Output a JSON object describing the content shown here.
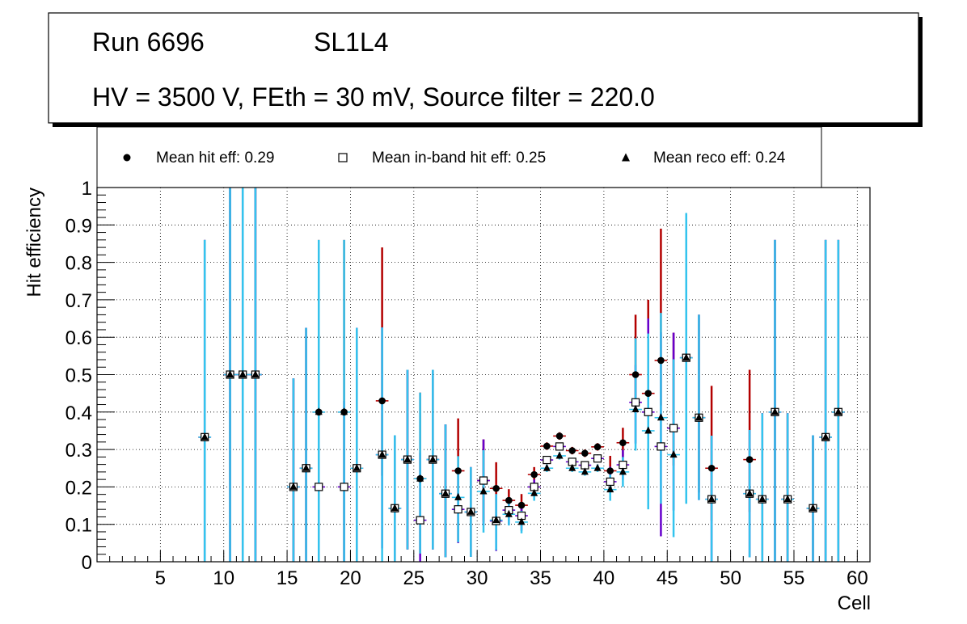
{
  "header": {
    "run": "Run 6696",
    "layer": "SL1L4",
    "settings": "HV = 3500 V, FEth = 30 mV, Source filter = 220.0"
  },
  "legend": {
    "hit": "Mean hit  eff: 0.29",
    "inband": "Mean in-band hit eff: 0.25",
    "reco": "Mean reco eff: 0.24"
  },
  "colors": {
    "hit_err": "#b30000",
    "inband_err": "#6600cc",
    "reco_err": "#33c4ee",
    "marker": "#000000",
    "grid": "#000000"
  },
  "chart_data": {
    "type": "scatter",
    "title": "",
    "xlabel": "Cell",
    "ylabel": "Hit efficiency",
    "xlim": [
      0,
      61
    ],
    "ylim": [
      0,
      1
    ],
    "x_ticks": [
      5,
      10,
      15,
      20,
      25,
      30,
      35,
      40,
      45,
      50,
      55,
      60
    ],
    "x_tick_labels": [
      "5",
      "10",
      "15",
      "20",
      "25",
      "30",
      "35",
      "40",
      "45",
      "50",
      "55",
      "60"
    ],
    "y_ticks": [
      0,
      0.1,
      0.2,
      0.3,
      0.4,
      0.5,
      0.6,
      0.7,
      0.8,
      0.9,
      1
    ],
    "y_tick_labels": [
      "0",
      "0.1",
      "0.2",
      "0.3",
      "0.4",
      "0.5",
      "0.6",
      "0.7",
      "0.8",
      "0.9",
      "1"
    ],
    "grid": true,
    "x": [
      8.5,
      10.5,
      11.5,
      12.5,
      15.5,
      16.5,
      17.5,
      19.5,
      20.5,
      22.5,
      23.5,
      24.5,
      25.5,
      26.5,
      27.5,
      28.5,
      29.5,
      30.5,
      31.5,
      32.5,
      33.5,
      34.5,
      35.5,
      36.5,
      37.5,
      38.5,
      39.5,
      40.5,
      41.5,
      42.5,
      43.5,
      44.5,
      45.5,
      46.5,
      47.5,
      48.5,
      51.5,
      52.5,
      53.5,
      54.5,
      56.5,
      57.5,
      58.5
    ],
    "series": [
      {
        "name": "Mean hit  eff: 0.29",
        "marker": "circle",
        "values": [
          0.333,
          0.5,
          0.5,
          0.5,
          0.2,
          0.25,
          0.4,
          0.4,
          0.25,
          0.43,
          0.143,
          0.273,
          0.222,
          0.273,
          0.182,
          0.243,
          0.133,
          0.217,
          0.196,
          0.164,
          0.151,
          0.233,
          0.309,
          0.336,
          0.297,
          0.29,
          0.307,
          0.243,
          0.318,
          0.5,
          0.45,
          0.538,
          0.357,
          0.545,
          0.385,
          0.25,
          0.273,
          0.167,
          0.4,
          0.167,
          0.143,
          0.333,
          0.4
        ],
        "err_low": [
          0.333,
          0.5,
          0.5,
          0.5,
          0.2,
          0.25,
          0.4,
          0.4,
          0.25,
          0.2,
          0.143,
          0.24,
          0.2,
          0.24,
          0.17,
          0.19,
          0.12,
          0.11,
          0.1,
          0.04,
          0.04,
          0.02,
          0.01,
          0.01,
          0.01,
          0.01,
          0.01,
          0.04,
          0.04,
          0.06,
          0.05,
          0.12,
          0.1,
          0.18,
          0.2,
          0.14,
          0.14,
          0.17,
          0.4,
          0.167,
          0.143,
          0.333,
          0.4
        ],
        "err_high": [
          0.527,
          0.5,
          0.5,
          0.5,
          0.29,
          0.375,
          0.46,
          0.46,
          0.375,
          0.41,
          0.195,
          0.24,
          0.23,
          0.24,
          0.185,
          0.14,
          0.12,
          0.11,
          0.07,
          0.03,
          0.03,
          0.02,
          0.01,
          0.01,
          0.01,
          0.01,
          0.01,
          0.04,
          0.04,
          0.16,
          0.25,
          0.352,
          0.255,
          0.387,
          0.275,
          0.22,
          0.24,
          0.23,
          0.46,
          0.23,
          0.195,
          0.527,
          0.46
        ]
      },
      {
        "name": "Mean in-band hit eff: 0.25",
        "marker": "open-square",
        "values": [
          0.333,
          0.5,
          0.5,
          0.5,
          0.2,
          0.25,
          0.2,
          0.2,
          0.25,
          0.286,
          0.143,
          0.273,
          0.111,
          0.273,
          0.182,
          0.14,
          0.133,
          0.217,
          0.109,
          0.138,
          0.123,
          0.2,
          0.272,
          0.308,
          0.267,
          0.258,
          0.276,
          0.214,
          0.259,
          0.426,
          0.4,
          0.308,
          0.357,
          0.545,
          0.385,
          0.167,
          0.182,
          0.167,
          0.4,
          0.167,
          0.143,
          0.333,
          0.4
        ],
        "err_low": [
          0.333,
          0.5,
          0.5,
          0.5,
          0.2,
          0.25,
          0.2,
          0.2,
          0.25,
          0.25,
          0.143,
          0.24,
          0.111,
          0.24,
          0.17,
          0.09,
          0.12,
          0.12,
          0.08,
          0.04,
          0.04,
          0.02,
          0.01,
          0.01,
          0.01,
          0.01,
          0.01,
          0.03,
          0.04,
          0.11,
          0.16,
          0.24,
          0.22,
          0.25,
          0.22,
          0.167,
          0.17,
          0.167,
          0.4,
          0.167,
          0.143,
          0.333,
          0.4
        ],
        "err_high": [
          0.527,
          0.5,
          0.5,
          0.5,
          0.29,
          0.375,
          0.23,
          0.23,
          0.375,
          0.34,
          0.195,
          0.24,
          0.18,
          0.24,
          0.185,
          0.1,
          0.12,
          0.11,
          0.07,
          0.03,
          0.03,
          0.02,
          0.01,
          0.01,
          0.01,
          0.01,
          0.01,
          0.04,
          0.04,
          0.1,
          0.25,
          0.305,
          0.255,
          0.387,
          0.275,
          0.17,
          0.17,
          0.23,
          0.46,
          0.23,
          0.195,
          0.527,
          0.46
        ]
      },
      {
        "name": "Mean reco eff: 0.24",
        "marker": "triangle",
        "values": [
          0.333,
          0.5,
          0.5,
          0.5,
          0.2,
          0.25,
          0.4,
          0.4,
          0.25,
          0.286,
          0.143,
          0.273,
          0.222,
          0.273,
          0.182,
          0.172,
          0.133,
          0.188,
          0.111,
          0.127,
          0.106,
          0.183,
          0.25,
          0.283,
          0.25,
          0.24,
          0.25,
          0.193,
          0.24,
          0.407,
          0.35,
          0.385,
          0.286,
          0.545,
          0.385,
          0.167,
          0.182,
          0.167,
          0.4,
          0.167,
          0.143,
          0.333,
          0.4
        ],
        "err_low": [
          0.333,
          0.5,
          0.5,
          0.5,
          0.2,
          0.25,
          0.4,
          0.4,
          0.25,
          0.286,
          0.143,
          0.24,
          0.2,
          0.24,
          0.17,
          0.12,
          0.12,
          0.11,
          0.08,
          0.03,
          0.03,
          0.02,
          0.01,
          0.01,
          0.01,
          0.01,
          0.01,
          0.03,
          0.04,
          0.11,
          0.21,
          0.23,
          0.22,
          0.39,
          0.22,
          0.167,
          0.17,
          0.167,
          0.4,
          0.167,
          0.143,
          0.333,
          0.4
        ],
        "err_high": [
          0.527,
          0.5,
          0.5,
          0.5,
          0.29,
          0.375,
          0.46,
          0.46,
          0.375,
          0.34,
          0.195,
          0.24,
          0.23,
          0.24,
          0.185,
          0.11,
          0.12,
          0.11,
          0.07,
          0.03,
          0.03,
          0.02,
          0.01,
          0.01,
          0.01,
          0.01,
          0.01,
          0.04,
          0.04,
          0.19,
          0.26,
          0.28,
          0.255,
          0.387,
          0.275,
          0.17,
          0.17,
          0.23,
          0.46,
          0.23,
          0.195,
          0.527,
          0.46
        ]
      }
    ]
  }
}
